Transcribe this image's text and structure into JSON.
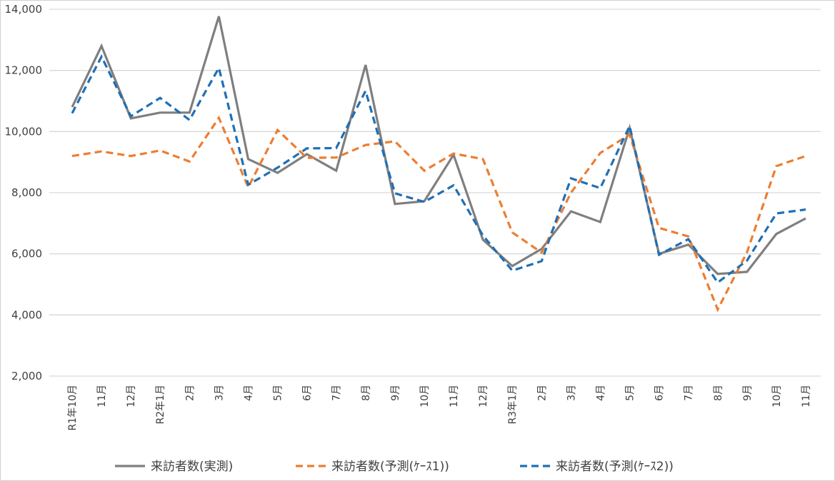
{
  "chart_data": {
    "type": "line",
    "title": "",
    "xlabel": "",
    "ylabel": "",
    "ylim": [
      2000,
      14000
    ],
    "yticks": [
      2000,
      4000,
      6000,
      8000,
      10000,
      12000,
      14000
    ],
    "ytick_labels": [
      "2,000",
      "4,000",
      "6,000",
      "8,000",
      "10,000",
      "12,000",
      "14,000"
    ],
    "grid": true,
    "legend_position": "bottom",
    "categories": [
      "R1年10月",
      "11月",
      "12月",
      "R2年1月",
      "2月",
      "3月",
      "4月",
      "5月",
      "6月",
      "7月",
      "8月",
      "9月",
      "10月",
      "11月",
      "12月",
      "R3年1月",
      "2月",
      "3月",
      "4月",
      "5月",
      "6月",
      "7月",
      "8月",
      "9月",
      "10月",
      "11月"
    ],
    "series": [
      {
        "name": "来訪者数(実測)",
        "color": "#7f7f7f",
        "dash": "solid",
        "values": [
          10800,
          12800,
          10430,
          10620,
          10620,
          13770,
          9100,
          8650,
          9260,
          8720,
          12180,
          7630,
          7720,
          9240,
          6460,
          5600,
          6160,
          7390,
          7040,
          10120,
          6000,
          6300,
          5340,
          5410,
          6650,
          7160
        ]
      },
      {
        "name": "来訪者数(予測(ｹｰｽ1))",
        "color": "#ed7d31",
        "dash": "dashed",
        "values": [
          9200,
          9350,
          9200,
          9380,
          9020,
          10450,
          8180,
          10050,
          9140,
          9150,
          9560,
          9680,
          8720,
          9280,
          9100,
          6700,
          6040,
          8000,
          9300,
          9900,
          6850,
          6570,
          4180,
          6050,
          8870,
          9200
        ]
      },
      {
        "name": "来訪者数(予測(ｹｰｽ2))",
        "color": "#1f6fb5",
        "dash": "dashed",
        "values": [
          10600,
          12450,
          10500,
          11100,
          10380,
          12080,
          8260,
          8820,
          9450,
          9460,
          11330,
          7980,
          7700,
          8240,
          6600,
          5450,
          5760,
          8470,
          8150,
          10180,
          5970,
          6480,
          5060,
          5780,
          7320,
          7450
        ]
      }
    ]
  }
}
